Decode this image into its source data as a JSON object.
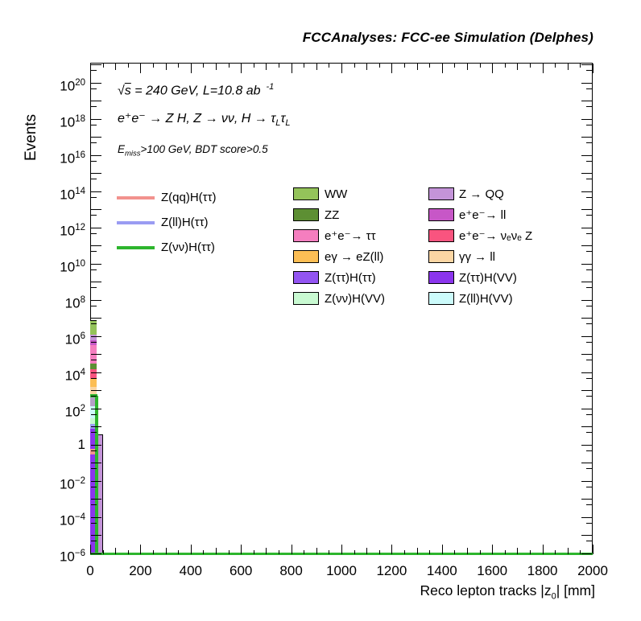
{
  "title": {
    "text": "FCCAnalyses: FCC-ee Simulation (Delphes)"
  },
  "annotations": {
    "line1": {
      "sqrt": "√",
      "s": "s",
      "rest": " = 240 GeV, L=10.8 ab",
      "sup": "-1"
    },
    "line2": {
      "main": "e⁺e⁻ → Z H, Z  → νν, H → ",
      "tau": "τ",
      "sub": "L"
    },
    "line3": {
      "e": "E",
      "sub": "miss",
      "rest": ">100 GeV, BDT score>0.5"
    }
  },
  "axes": {
    "y_title": "Events",
    "x_title": {
      "main": "Reco lepton tracks |z",
      "sub": "0",
      "end": "| [mm]"
    },
    "x_range": [
      0,
      2000
    ],
    "y_exp_range": [
      -6.1,
      21.1
    ],
    "x_ticks": [
      {
        "value": 0,
        "label": "0"
      },
      {
        "value": 200,
        "label": "200"
      },
      {
        "value": 400,
        "label": "400"
      },
      {
        "value": 600,
        "label": "600"
      },
      {
        "value": 800,
        "label": "800"
      },
      {
        "value": 1000,
        "label": "1000"
      },
      {
        "value": 1200,
        "label": "1200"
      },
      {
        "value": 1400,
        "label": "1400"
      },
      {
        "value": 1600,
        "label": "1600"
      },
      {
        "value": 1800,
        "label": "1800"
      },
      {
        "value": 2000,
        "label": "2000"
      }
    ],
    "y_labeled_exponents": [
      20,
      18,
      16,
      14,
      12,
      10,
      8,
      6,
      4,
      2,
      0,
      -2,
      -4,
      -6
    ]
  },
  "legend_signals": [
    {
      "label": "Z(qq)H(ττ)",
      "color": "#f2928e"
    },
    {
      "label": "Z(ll)H(ττ)",
      "color": "#9a9cf2"
    },
    {
      "label": "Z(νν)H(ττ)",
      "color": "#2db52d"
    }
  ],
  "legend_backgrounds_col1": [
    {
      "label": "WW",
      "color": "#94c35a"
    },
    {
      "label": "ZZ",
      "color": "#5d8f33"
    },
    {
      "label": "e⁺e⁻→ ττ",
      "color": "#f57ebf"
    },
    {
      "label": "eγ → eZ(ll)",
      "color": "#fcbe55"
    },
    {
      "label": "Z(ττ)H(ττ)",
      "color": "#9355f2"
    },
    {
      "label": "Z(νν)H(VV)",
      "color": "#c9fad2"
    }
  ],
  "legend_backgrounds_col2": [
    {
      "label": "Z → QQ",
      "color": "#c494d9"
    },
    {
      "label": "e⁺e⁻→ ll",
      "color": "#c757c7"
    },
    {
      "label": "e⁺e⁻→ νₑνₑ Z",
      "color": "#f9547f"
    },
    {
      "label": "γγ → ll",
      "color": "#fbd6a4"
    },
    {
      "label": "Z(ττ)H(VV)",
      "color": "#8b35ed"
    },
    {
      "label": "Z(ll)H(VV)",
      "color": "#ccfbfb"
    }
  ],
  "chart_data": {
    "type": "bar",
    "y_scale": "log",
    "title": "FCCAnalyses: FCC-ee Simulation (Delphes)",
    "xlabel": "Reco lepton tracks |z0| [mm]",
    "ylabel": "Events",
    "xlim": [
      0,
      2000
    ],
    "ylim_exponents": [
      -6.1,
      21.1
    ],
    "grid": false,
    "legend_position": "upper-middle",
    "stack_bin1": {
      "x_mm": [
        0,
        25
      ],
      "segments": [
        {
          "name": "WW",
          "color": "#94c35a",
          "exp_top": 6.85,
          "exp_bot": 6.1
        },
        {
          "name": "Z → QQ",
          "color": "#c494d9",
          "exp_top": 6.1,
          "exp_bot": 5.75
        },
        {
          "name": "e⁺e⁻→ ll",
          "color": "#c757c7",
          "exp_top": 5.75,
          "exp_bot": 5.5
        },
        {
          "name": "e⁺e⁻→ ττ",
          "color": "#f57ebf",
          "exp_top": 5.5,
          "exp_bot": 4.5
        },
        {
          "name": "ZZ",
          "color": "#5d8f33",
          "exp_top": 4.5,
          "exp_bot": 4.15
        },
        {
          "name": "e⁺e⁻→ νₑνₑ Z",
          "color": "#f9547f",
          "exp_top": 4.15,
          "exp_bot": 3.62
        },
        {
          "name": "eγ → eZ(ll)",
          "color": "#fcbe55",
          "exp_top": 3.62,
          "exp_bot": 3.2
        },
        {
          "name": "γγ → ll",
          "color": "#fbd6a4",
          "exp_top": 3.2,
          "exp_bot": 2.72
        },
        {
          "name": "Z → QQ",
          "color": "#b4a0c8",
          "exp_top": 2.72,
          "exp_bot": 2.13
        },
        {
          "name": "Z(ll)H(VV)",
          "color": "#ccfbfb",
          "exp_top": 2.13,
          "exp_bot": 1.47
        },
        {
          "name": "Z(νν)H(VV)",
          "color": "#c9fad2",
          "exp_top": 1.47,
          "exp_bot": 1.16
        },
        {
          "name": "Z(ττ)H",
          "color": "#8b35ed",
          "exp_top": 1.16,
          "exp_bot": -6.1
        }
      ]
    },
    "stack_bin2": {
      "x_mm": [
        25,
        50
      ],
      "name": "Z → QQ",
      "color": "#c494d9",
      "exp_top": 0.55,
      "exp_bot": -6.1
    },
    "overlays": [
      {
        "name": "Z(ll)H(ττ)",
        "color": "#9a9cf2",
        "exp_top": 1.16,
        "exp_bot": 0.89,
        "x_mm": [
          0,
          20
        ]
      },
      {
        "name": "Z(qq)H(ττ)",
        "color": "#f2928e",
        "exp_top": -0.22,
        "exp_bot": -0.55,
        "x_mm": [
          0,
          20
        ]
      }
    ],
    "signal_line": {
      "name": "Z(νν)H(ττ)",
      "color": "#2db52d",
      "peak_exp": 2.72,
      "peak_x_mm": [
        0,
        30
      ],
      "baseline_exp": -6.0
    }
  }
}
